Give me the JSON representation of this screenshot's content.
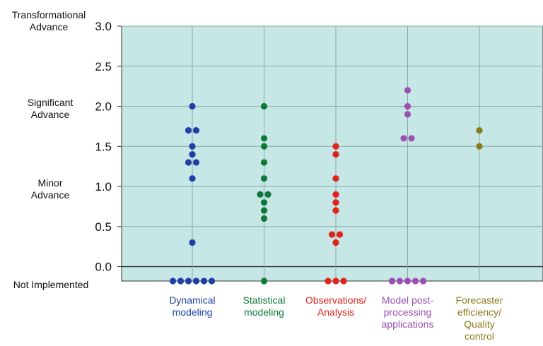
{
  "chart_data": {
    "type": "scatter",
    "ylim": [
      -0.18,
      3.0
    ],
    "y_ticks": [
      "0.0",
      "0.5",
      "1.0",
      "1.5",
      "2.0",
      "2.5",
      "3.0"
    ],
    "y_tick_values": [
      0.0,
      0.5,
      1.0,
      1.5,
      2.0,
      2.5,
      3.0
    ],
    "y_level_labels": {
      "transformational": "Transformational Advance",
      "significant": "Significant Advance",
      "minor": "Minor Advance",
      "not_implemented": "Not Implemented"
    },
    "not_implemented_value": -0.18,
    "grid": true,
    "plot_background": "#c7e6e6",
    "categories": [
      "Dynamical modeling",
      "Statistical modeling",
      "Observations/ Analysis",
      "Model post-processing applications",
      "Forecaster efficiency/ Quality control"
    ],
    "category_lines": [
      [
        "Dynamical",
        "modeling"
      ],
      [
        "Statistical",
        "modeling"
      ],
      [
        "Observations/",
        "Analysis"
      ],
      [
        "Model post-",
        "processing",
        "applications"
      ],
      [
        "Forecaster",
        "efficiency/",
        "Quality",
        "control"
      ]
    ],
    "series": [
      {
        "color": "#1f3fa6",
        "points": [
          2.0,
          1.7,
          1.7,
          1.5,
          1.4,
          1.3,
          1.3,
          1.1,
          0.3,
          -0.18,
          -0.18,
          -0.18,
          -0.18,
          -0.18,
          -0.18
        ]
      },
      {
        "color": "#0e7a3a",
        "points": [
          2.0,
          1.6,
          1.5,
          1.3,
          1.1,
          0.9,
          0.9,
          0.8,
          0.7,
          0.6,
          -0.18
        ]
      },
      {
        "color": "#e0241b",
        "points": [
          1.5,
          1.4,
          1.1,
          0.9,
          0.8,
          0.7,
          0.4,
          0.4,
          0.3,
          -0.18,
          -0.18,
          -0.18
        ]
      },
      {
        "color": "#9b4fb0",
        "points": [
          2.2,
          2.0,
          1.9,
          1.6,
          1.6,
          -0.18,
          -0.18,
          -0.18,
          -0.18,
          -0.18
        ]
      },
      {
        "color": "#8a7a1c",
        "points": [
          1.7,
          1.5
        ]
      }
    ]
  }
}
